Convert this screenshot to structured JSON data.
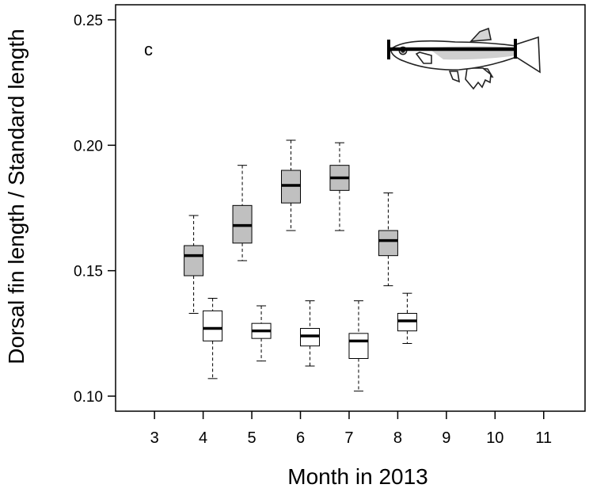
{
  "chart_data": {
    "type": "box",
    "panel_label": "c",
    "xlabel": "Month in 2013",
    "ylabel": "Dorsal fin length / Standard length",
    "xlim": [
      2.2,
      11.85
    ],
    "ylim": [
      0.094,
      0.256
    ],
    "x_ticks": [
      3,
      4,
      5,
      6,
      7,
      8,
      9,
      10,
      11
    ],
    "x_tick_labels": [
      "3",
      "4",
      "5",
      "6",
      "7",
      "8",
      "9",
      "10",
      "11"
    ],
    "y_ticks": [
      0.1,
      0.15,
      0.2,
      0.25
    ],
    "y_tick_labels": [
      "0.10",
      "0.15",
      "0.20",
      "0.25"
    ],
    "grid": false,
    "series": [
      {
        "fill": "#c0c0c0",
        "boxes": [
          {
            "month": 4,
            "min": 0.133,
            "q1": 0.148,
            "median": 0.156,
            "q3": 0.16,
            "max": 0.172
          },
          {
            "month": 5,
            "min": 0.154,
            "q1": 0.161,
            "median": 0.168,
            "q3": 0.176,
            "max": 0.192
          },
          {
            "month": 6,
            "min": 0.166,
            "q1": 0.177,
            "median": 0.184,
            "q3": 0.19,
            "max": 0.202
          },
          {
            "month": 7,
            "min": 0.166,
            "q1": 0.182,
            "median": 0.187,
            "q3": 0.192,
            "max": 0.201
          },
          {
            "month": 8,
            "min": 0.144,
            "q1": 0.156,
            "median": 0.162,
            "q3": 0.166,
            "max": 0.181
          }
        ]
      },
      {
        "fill": "#ffffff",
        "boxes": [
          {
            "month": 4,
            "min": 0.107,
            "q1": 0.122,
            "median": 0.127,
            "q3": 0.134,
            "max": 0.139
          },
          {
            "month": 5,
            "min": 0.114,
            "q1": 0.123,
            "median": 0.126,
            "q3": 0.129,
            "max": 0.136
          },
          {
            "month": 6,
            "min": 0.112,
            "q1": 0.12,
            "median": 0.124,
            "q3": 0.127,
            "max": 0.138
          },
          {
            "month": 7,
            "min": 0.102,
            "q1": 0.115,
            "median": 0.122,
            "q3": 0.125,
            "max": 0.138
          },
          {
            "month": 8,
            "min": 0.121,
            "q1": 0.126,
            "median": 0.13,
            "q3": 0.133,
            "max": 0.141
          }
        ]
      }
    ]
  }
}
